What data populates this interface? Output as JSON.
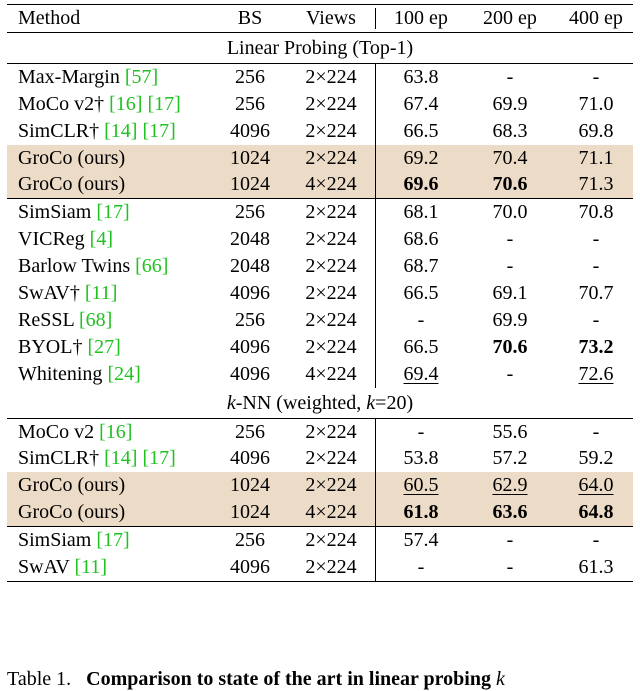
{
  "header": {
    "method": "Method",
    "bs": "BS",
    "views": "Views",
    "ep100": "100 ep",
    "ep200": "200 ep",
    "ep400": "400 ep"
  },
  "sections": [
    {
      "title": "Linear Probing (Top-1)",
      "title_pre": "",
      "title_mid": "",
      "title_post": "",
      "groups": [
        {
          "highlight": false,
          "rows": [
            {
              "name": "Max-Margin ",
              "refs": [
                "[57]"
              ],
              "dagger": false,
              "bs": "256",
              "views": "2×224",
              "ep100": "63.8",
              "ep200": "-",
              "ep400": "-",
              "bold": [],
              "under": []
            },
            {
              "name": "MoCo v2",
              "refs": [
                "[16]",
                "[17]"
              ],
              "dagger": true,
              "bs": "256",
              "views": "2×224",
              "ep100": "67.4",
              "ep200": "69.9",
              "ep400": "71.0",
              "bold": [],
              "under": []
            },
            {
              "name": "SimCLR",
              "refs": [
                "[14]",
                "[17]"
              ],
              "dagger": true,
              "bs": "4096",
              "views": "2×224",
              "ep100": "66.5",
              "ep200": "68.3",
              "ep400": "69.8",
              "bold": [],
              "under": []
            }
          ]
        },
        {
          "highlight": true,
          "rows": [
            {
              "name": "GroCo (ours)",
              "refs": [],
              "dagger": false,
              "bs": "1024",
              "views": "2×224",
              "ep100": "69.2",
              "ep200": "70.4",
              "ep400": "71.1",
              "bold": [],
              "under": []
            },
            {
              "name": "GroCo (ours)",
              "refs": [],
              "dagger": false,
              "bs": "1024",
              "views": "4×224",
              "ep100": "69.6",
              "ep200": "70.6",
              "ep400": "71.3",
              "bold": [
                "ep100",
                "ep200"
              ],
              "under": []
            }
          ]
        },
        {
          "highlight": false,
          "divider": true,
          "rows": [
            {
              "name": "SimSiam ",
              "refs": [
                "[17]"
              ],
              "dagger": false,
              "bs": "256",
              "views": "2×224",
              "ep100": "68.1",
              "ep200": "70.0",
              "ep400": "70.8",
              "bold": [],
              "under": []
            },
            {
              "name": "VICReg ",
              "refs": [
                "[4]"
              ],
              "dagger": false,
              "bs": "2048",
              "views": "2×224",
              "ep100": "68.6",
              "ep200": "-",
              "ep400": "-",
              "bold": [],
              "under": []
            },
            {
              "name": "Barlow Twins ",
              "refs": [
                "[66]"
              ],
              "dagger": false,
              "bs": "2048",
              "views": "2×224",
              "ep100": "68.7",
              "ep200": "-",
              "ep400": "-",
              "bold": [],
              "under": []
            },
            {
              "name": "SwAV",
              "refs": [
                "[11]"
              ],
              "dagger": true,
              "bs": "4096",
              "views": "2×224",
              "ep100": "66.5",
              "ep200": "69.1",
              "ep400": "70.7",
              "bold": [],
              "under": []
            },
            {
              "name": "ReSSL ",
              "refs": [
                "[68]"
              ],
              "dagger": false,
              "bs": "256",
              "views": "2×224",
              "ep100": "-",
              "ep200": "69.9",
              "ep400": "-",
              "bold": [],
              "under": []
            },
            {
              "name": "BYOL",
              "refs": [
                "[27]"
              ],
              "dagger": true,
              "bs": "4096",
              "views": "2×224",
              "ep100": "66.5",
              "ep200": "70.6",
              "ep400": "73.2",
              "bold": [
                "ep200",
                "ep400"
              ],
              "under": []
            },
            {
              "name": "Whitening ",
              "refs": [
                "[24]"
              ],
              "dagger": false,
              "bs": "4096",
              "views": "4×224",
              "ep100": "69.4",
              "ep200": "-",
              "ep400": "72.6",
              "bold": [],
              "under": [
                "ep100",
                "ep400"
              ]
            }
          ]
        }
      ]
    },
    {
      "title": "",
      "title_pre": "k",
      "title_mid": "-NN (weighted, ",
      "title_post": "=20)",
      "groups": [
        {
          "highlight": false,
          "rows": [
            {
              "name": "MoCo v2 ",
              "refs": [
                "[16]"
              ],
              "dagger": false,
              "bs": "256",
              "views": "2×224",
              "ep100": "-",
              "ep200": "55.6",
              "ep400": "-",
              "bold": [],
              "under": []
            },
            {
              "name": "SimCLR",
              "refs": [
                "[14]",
                "[17]"
              ],
              "dagger": true,
              "bs": "4096",
              "views": "2×224",
              "ep100": "53.8",
              "ep200": "57.2",
              "ep400": "59.2",
              "bold": [],
              "under": []
            }
          ]
        },
        {
          "highlight": true,
          "rows": [
            {
              "name": "GroCo (ours)",
              "refs": [],
              "dagger": false,
              "bs": "1024",
              "views": "2×224",
              "ep100": "60.5",
              "ep200": "62.9",
              "ep400": "64.0",
              "bold": [],
              "under": [
                "ep100",
                "ep200",
                "ep400"
              ]
            },
            {
              "name": "GroCo (ours)",
              "refs": [],
              "dagger": false,
              "bs": "1024",
              "views": "4×224",
              "ep100": "61.8",
              "ep200": "63.6",
              "ep400": "64.8",
              "bold": [
                "ep100",
                "ep200",
                "ep400"
              ],
              "under": []
            }
          ]
        },
        {
          "highlight": false,
          "divider": true,
          "rows": [
            {
              "name": "SimSiam ",
              "refs": [
                "[17]"
              ],
              "dagger": false,
              "bs": "256",
              "views": "2×224",
              "ep100": "57.4",
              "ep200": "-",
              "ep400": "-",
              "bold": [],
              "under": []
            },
            {
              "name": "SwAV ",
              "refs": [
                "[11]"
              ],
              "dagger": false,
              "bs": "4096",
              "views": "2×224",
              "ep100": "-",
              "ep200": "-",
              "ep400": "61.3",
              "bold": [],
              "under": []
            }
          ]
        }
      ]
    }
  ],
  "dagger_symbol": "†",
  "caption": {
    "label": "Table 1.",
    "bold_text": "Comparison to state of the art in linear probing",
    "tail": "k"
  }
}
